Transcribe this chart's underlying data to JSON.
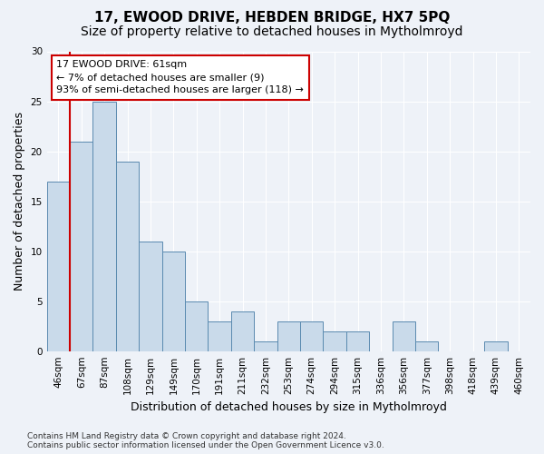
{
  "title1": "17, EWOOD DRIVE, HEBDEN BRIDGE, HX7 5PQ",
  "title2": "Size of property relative to detached houses in Mytholmroyd",
  "xlabel": "Distribution of detached houses by size in Mytholmroyd",
  "ylabel": "Number of detached properties",
  "categories": [
    "46sqm",
    "67sqm",
    "87sqm",
    "108sqm",
    "129sqm",
    "149sqm",
    "170sqm",
    "191sqm",
    "211sqm",
    "232sqm",
    "253sqm",
    "274sqm",
    "294sqm",
    "315sqm",
    "336sqm",
    "356sqm",
    "377sqm",
    "398sqm",
    "418sqm",
    "439sqm",
    "460sqm"
  ],
  "values": [
    17,
    21,
    25,
    19,
    11,
    10,
    5,
    3,
    4,
    1,
    3,
    3,
    2,
    2,
    0,
    3,
    1,
    0,
    0,
    1,
    0
  ],
  "bar_color": "#c9daea",
  "bar_edge_color": "#5a8ab0",
  "marker_line_color": "#cc0000",
  "annotation_text": "17 EWOOD DRIVE: 61sqm\n← 7% of detached houses are smaller (9)\n93% of semi-detached houses are larger (118) →",
  "annotation_box_color": "#ffffff",
  "annotation_box_edge": "#cc0000",
  "ylim": [
    0,
    30
  ],
  "yticks": [
    0,
    5,
    10,
    15,
    20,
    25,
    30
  ],
  "footnote": "Contains HM Land Registry data © Crown copyright and database right 2024.\nContains public sector information licensed under the Open Government Licence v3.0.",
  "background_color": "#eef2f8",
  "grid_color": "#ffffff",
  "title1_fontsize": 11,
  "title2_fontsize": 10,
  "xlabel_fontsize": 9,
  "ylabel_fontsize": 9,
  "tick_fontsize": 7.5,
  "footnote_fontsize": 6.5
}
